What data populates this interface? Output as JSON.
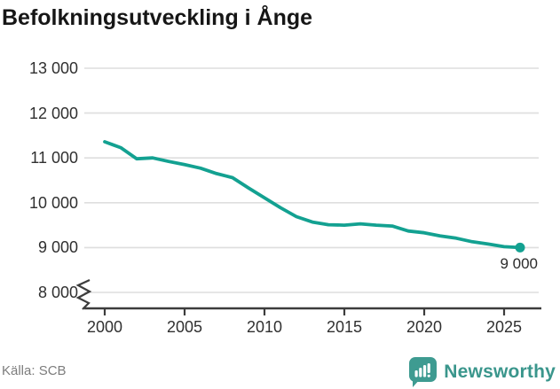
{
  "title": "Befolkningsutveckling i Ånge",
  "source": "Källa: SCB",
  "annotation": {
    "last_value_label": "9 000"
  },
  "branding": {
    "name": "Newsworthy"
  },
  "colors": {
    "line": "#13a191",
    "grid": "#dedede",
    "axis": "#3c3c3c",
    "tick_text": "#303030",
    "title_text": "#161616",
    "source_text": "#7d7d7d",
    "brand": "#3a968c",
    "brand_icon": "#3e9b91",
    "end_label_text": "#2b2b2b"
  },
  "chart_data": {
    "type": "line",
    "title": "Befolkningsutveckling i Ånge",
    "xlabel": "",
    "ylabel": "",
    "x": [
      2000,
      2001,
      2002,
      2003,
      2004,
      2005,
      2006,
      2007,
      2008,
      2009,
      2010,
      2011,
      2012,
      2013,
      2014,
      2015,
      2016,
      2017,
      2018,
      2019,
      2020,
      2021,
      2022,
      2023,
      2024,
      2025,
      2026
    ],
    "values": [
      11360,
      11230,
      10980,
      11000,
      10920,
      10850,
      10770,
      10650,
      10560,
      10330,
      10110,
      9890,
      9690,
      9570,
      9510,
      9500,
      9530,
      9500,
      9480,
      9370,
      9330,
      9260,
      9210,
      9130,
      9080,
      9020,
      9000
    ],
    "x_ticks": [
      2000,
      2005,
      2010,
      2015,
      2020,
      2025
    ],
    "y_ticks": [
      {
        "value": 13000,
        "label": "13 000"
      },
      {
        "value": 12000,
        "label": "12 000"
      },
      {
        "value": 11000,
        "label": "11 000"
      },
      {
        "value": 10000,
        "label": "10 000"
      },
      {
        "value": 9000,
        "label": "9 000"
      },
      {
        "value": 8000,
        "label": "8 000"
      }
    ],
    "ylim": [
      8000,
      13000
    ],
    "axis_break_below": 8000,
    "grid": "horizontal",
    "legend": "none",
    "end_point_label": "9 000",
    "source": "SCB"
  }
}
